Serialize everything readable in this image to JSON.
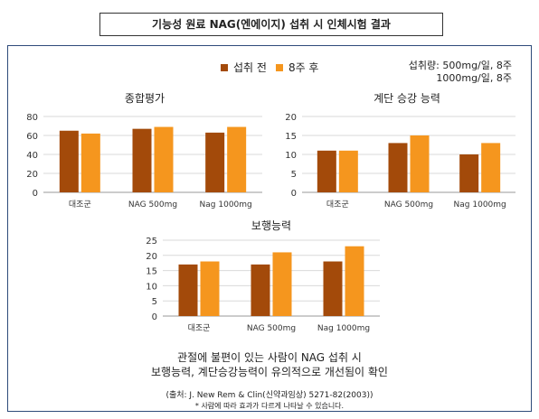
{
  "title": "기능성 원료 NAG(엔에이지) 섭취 시 인체시험 결과",
  "legend": {
    "before": "섭취 전",
    "after": "8주 후",
    "before_color": "#a34a0a",
    "after_color": "#f5961e"
  },
  "dose": {
    "line1": "섭취량: 500mg/일, 8주",
    "line2": "1000mg/일, 8주"
  },
  "chart_data": [
    {
      "type": "bar",
      "title": "종합평가",
      "categories": [
        "대조군",
        "NAG 500mg",
        "Nag 1000mg"
      ],
      "series": [
        {
          "name": "섭취 전",
          "values": [
            65,
            67,
            63
          ]
        },
        {
          "name": "8주 후",
          "values": [
            62,
            69,
            69
          ]
        }
      ],
      "ylim": [
        0,
        80
      ],
      "yticks": [
        0,
        20,
        40,
        60,
        80
      ],
      "grid": true
    },
    {
      "type": "bar",
      "title": "계단 승강 능력",
      "categories": [
        "대조군",
        "NAG 500mg",
        "Nag 1000mg"
      ],
      "series": [
        {
          "name": "섭취 전",
          "values": [
            11,
            13,
            10
          ]
        },
        {
          "name": "8주 후",
          "values": [
            11,
            15,
            13
          ]
        }
      ],
      "ylim": [
        0,
        20
      ],
      "yticks": [
        0,
        5,
        10,
        15,
        20
      ],
      "grid": true
    },
    {
      "type": "bar",
      "title": "보행능력",
      "categories": [
        "대조군",
        "NAG 500mg",
        "Nag 1000mg"
      ],
      "series": [
        {
          "name": "섭취 전",
          "values": [
            17,
            17,
            18
          ]
        },
        {
          "name": "8주 후",
          "values": [
            18,
            21,
            23
          ]
        }
      ],
      "ylim": [
        0,
        25
      ],
      "yticks": [
        0,
        5,
        10,
        15,
        20,
        25
      ],
      "grid": true
    }
  ],
  "conclusion": {
    "line1": "관절에 불편이 있는 사람이 NAG 섭취 시",
    "line2": "보행능력, 계단승강능력이 유의적으로 개선됨이 확인"
  },
  "source": "(출처: J. New Rem & Clin(신약과임상) 5271-82(2003))",
  "note": "* 사람에 따라 효과가 다르게 나타날 수 있습니다."
}
